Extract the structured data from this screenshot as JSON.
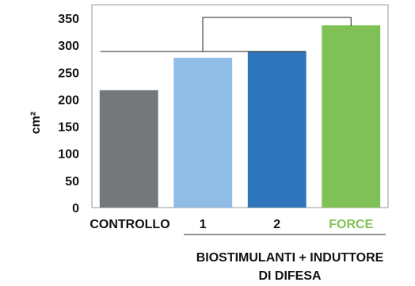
{
  "chart_data": {
    "type": "bar",
    "categories": [
      "CONTROLLO",
      "1",
      "2",
      "FORCE"
    ],
    "values": [
      217,
      277,
      289,
      337
    ],
    "bar_colors": [
      "#75787b",
      "#8fbde6",
      "#2e75bc",
      "#7fc157"
    ],
    "category_label_colors": [
      "#111111",
      "#111111",
      "#111111",
      "#7fc157"
    ],
    "ylabel": "cm²",
    "ylim": [
      0,
      375
    ],
    "yticks": [
      0,
      50,
      100,
      150,
      200,
      250,
      300,
      350
    ],
    "grid": false,
    "group_label_line1": "BIOSTIMULANTI + INDUTTORE",
    "group_label_line2": "DI DIFESA",
    "bracket_color": "#222222"
  }
}
